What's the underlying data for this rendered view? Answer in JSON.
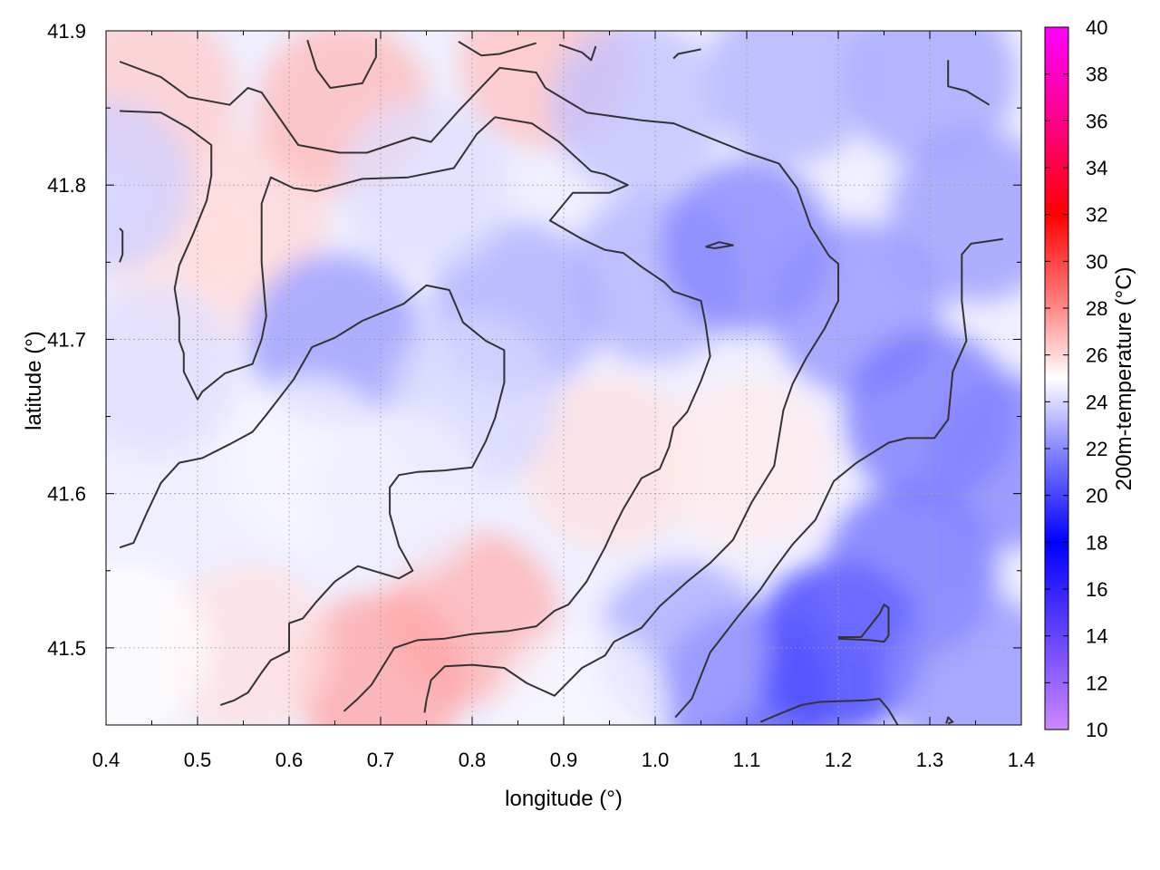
{
  "chart_data": {
    "type": "heatmap",
    "title": "",
    "xlabel": "longitude (°)",
    "ylabel": "latitude (°)",
    "colorbar_label": "200m-temperature (°C)",
    "xlim": [
      0.4,
      1.4
    ],
    "ylim": [
      41.45,
      41.9
    ],
    "x_ticks": [
      0.4,
      0.5,
      0.6,
      0.7,
      0.8,
      0.9,
      1.0,
      1.1,
      1.2,
      1.3,
      1.4
    ],
    "x_tick_labels": [
      "0.4",
      "0.5",
      "0.6",
      "0.7",
      "0.8",
      "0.9",
      "1.0",
      "1.1",
      "1.2",
      "1.3",
      "1.4"
    ],
    "y_ticks": [
      41.5,
      41.6,
      41.7,
      41.8,
      41.9
    ],
    "y_tick_labels": [
      "41.5",
      "41.6",
      "41.7",
      "41.8",
      "41.9"
    ],
    "colorbar_range": [
      10,
      40
    ],
    "colorbar_ticks": [
      10,
      12,
      14,
      16,
      18,
      20,
      22,
      24,
      26,
      28,
      30,
      32,
      34,
      36,
      38,
      40
    ],
    "colorbar_tick_labels": [
      "10",
      "12",
      "14",
      "16",
      "18",
      "20",
      "22",
      "24",
      "26",
      "28",
      "30",
      "32",
      "34",
      "36",
      "38",
      "40"
    ],
    "colormap": [
      {
        "value": 10,
        "color": "#cc88ff"
      },
      {
        "value": 14,
        "color": "#6644ff"
      },
      {
        "value": 18,
        "color": "#0000ff"
      },
      {
        "value": 22,
        "color": "#8888ff"
      },
      {
        "value": 25,
        "color": "#ffffff"
      },
      {
        "value": 28,
        "color": "#ff8888"
      },
      {
        "value": 32,
        "color": "#ff0000"
      },
      {
        "value": 36,
        "color": "#ff0088"
      },
      {
        "value": 40,
        "color": "#ff00ff"
      }
    ],
    "grid": true,
    "field_points": [
      {
        "x": 0.45,
        "y": 41.86,
        "v": 26.3
      },
      {
        "x": 0.55,
        "y": 41.78,
        "v": 26.0
      },
      {
        "x": 0.66,
        "y": 41.85,
        "v": 26.8
      },
      {
        "x": 0.88,
        "y": 41.88,
        "v": 26.6
      },
      {
        "x": 0.5,
        "y": 41.75,
        "v": 25.8
      },
      {
        "x": 0.8,
        "y": 41.52,
        "v": 27.0
      },
      {
        "x": 0.7,
        "y": 41.48,
        "v": 27.3
      },
      {
        "x": 0.55,
        "y": 41.5,
        "v": 25.8
      },
      {
        "x": 0.95,
        "y": 41.62,
        "v": 25.8
      },
      {
        "x": 1.1,
        "y": 41.62,
        "v": 25.5
      },
      {
        "x": 0.5,
        "y": 41.6,
        "v": 24.6
      },
      {
        "x": 0.45,
        "y": 41.68,
        "v": 24.2
      },
      {
        "x": 0.65,
        "y": 41.7,
        "v": 22.4
      },
      {
        "x": 0.85,
        "y": 41.72,
        "v": 22.9
      },
      {
        "x": 0.8,
        "y": 41.66,
        "v": 24.0
      },
      {
        "x": 1.0,
        "y": 41.74,
        "v": 23.0
      },
      {
        "x": 1.1,
        "y": 41.76,
        "v": 21.8
      },
      {
        "x": 1.22,
        "y": 41.72,
        "v": 22.2
      },
      {
        "x": 1.3,
        "y": 41.65,
        "v": 21.4
      },
      {
        "x": 1.35,
        "y": 41.78,
        "v": 22.4
      },
      {
        "x": 1.3,
        "y": 41.87,
        "v": 22.6
      },
      {
        "x": 1.15,
        "y": 41.87,
        "v": 23.0
      },
      {
        "x": 0.98,
        "y": 41.85,
        "v": 23.4
      },
      {
        "x": 1.2,
        "y": 41.5,
        "v": 19.6
      },
      {
        "x": 1.28,
        "y": 41.55,
        "v": 21.2
      },
      {
        "x": 1.1,
        "y": 41.47,
        "v": 20.4
      },
      {
        "x": 1.35,
        "y": 41.48,
        "v": 22.2
      },
      {
        "x": 1.03,
        "y": 41.5,
        "v": 22.8
      },
      {
        "x": 0.62,
        "y": 41.62,
        "v": 24.8
      },
      {
        "x": 0.4,
        "y": 41.8,
        "v": 23.8
      },
      {
        "x": 0.42,
        "y": 41.5,
        "v": 25.0
      },
      {
        "x": 0.92,
        "y": 41.46,
        "v": 24.8
      },
      {
        "x": 1.39,
        "y": 41.62,
        "v": 21.8
      },
      {
        "x": 0.75,
        "y": 41.8,
        "v": 24.2
      },
      {
        "x": 0.72,
        "y": 41.6,
        "v": 24.6
      }
    ],
    "contours": [
      [
        [
          0.415,
          41.88
        ],
        [
          0.46,
          41.87
        ],
        [
          0.49,
          41.857
        ],
        [
          0.535,
          41.852
        ],
        [
          0.555,
          41.863
        ],
        [
          0.57,
          41.86
        ],
        [
          0.61,
          41.826
        ],
        [
          0.655,
          41.821
        ],
        [
          0.685,
          41.821
        ],
        [
          0.735,
          41.831
        ],
        [
          0.755,
          41.828
        ],
        [
          0.785,
          41.848
        ],
        [
          0.83,
          41.876
        ],
        [
          0.87,
          41.873
        ],
        [
          0.88,
          41.863
        ],
        [
          0.925,
          41.847
        ],
        [
          0.985,
          41.842
        ],
        [
          1.02,
          41.84
        ],
        [
          1.1,
          41.821
        ],
        [
          1.135,
          41.814
        ],
        [
          1.155,
          41.798
        ],
        [
          1.17,
          41.773
        ],
        [
          1.19,
          41.754
        ],
        [
          1.2,
          41.749
        ],
        [
          1.2,
          41.725
        ],
        [
          1.185,
          41.707
        ],
        [
          1.165,
          41.688
        ],
        [
          1.15,
          41.671
        ],
        [
          1.14,
          41.654
        ],
        [
          1.13,
          41.618
        ],
        [
          1.105,
          41.594
        ],
        [
          1.085,
          41.57
        ],
        [
          1.06,
          41.555
        ],
        [
          1.035,
          41.543
        ],
        [
          1.005,
          41.527
        ],
        [
          0.985,
          41.513
        ],
        [
          0.955,
          41.504
        ],
        [
          0.945,
          41.495
        ],
        [
          0.92,
          41.487
        ],
        [
          0.89,
          41.469
        ],
        [
          0.86,
          41.477
        ],
        [
          0.835,
          41.487
        ],
        [
          0.8,
          41.489
        ],
        [
          0.77,
          41.488
        ],
        [
          0.755,
          41.479
        ],
        [
          0.75,
          41.466
        ],
        [
          0.748,
          41.458
        ]
      ],
      [
        [
          0.415,
          41.848
        ],
        [
          0.46,
          41.847
        ],
        [
          0.49,
          41.837
        ],
        [
          0.515,
          41.826
        ],
        [
          0.515,
          41.806
        ],
        [
          0.51,
          41.79
        ],
        [
          0.495,
          41.768
        ],
        [
          0.48,
          41.748
        ],
        [
          0.475,
          41.733
        ],
        [
          0.48,
          41.714
        ],
        [
          0.48,
          41.699
        ],
        [
          0.485,
          41.691
        ],
        [
          0.485,
          41.679
        ],
        [
          0.5,
          41.661
        ],
        [
          0.505,
          41.666
        ],
        [
          0.53,
          41.678
        ],
        [
          0.56,
          41.684
        ],
        [
          0.57,
          41.7
        ],
        [
          0.575,
          41.715
        ],
        [
          0.57,
          41.75
        ],
        [
          0.57,
          41.788
        ],
        [
          0.58,
          41.805
        ],
        [
          0.605,
          41.798
        ],
        [
          0.63,
          41.796
        ],
        [
          0.68,
          41.804
        ],
        [
          0.73,
          41.805
        ],
        [
          0.78,
          41.811
        ],
        [
          0.805,
          41.833
        ],
        [
          0.825,
          41.844
        ],
        [
          0.865,
          41.84
        ],
        [
          0.895,
          41.828
        ],
        [
          0.93,
          41.809
        ],
        [
          0.945,
          41.807
        ],
        [
          0.97,
          41.8
        ],
        [
          0.95,
          41.795
        ],
        [
          0.91,
          41.795
        ],
        [
          0.885,
          41.777
        ],
        [
          0.92,
          41.765
        ],
        [
          0.945,
          41.758
        ],
        [
          0.965,
          41.756
        ],
        [
          0.985,
          41.747
        ],
        [
          0.995,
          41.743
        ],
        [
          1.01,
          41.737
        ],
        [
          1.02,
          41.731
        ],
        [
          1.05,
          41.725
        ],
        [
          1.055,
          41.71
        ],
        [
          1.06,
          41.689
        ],
        [
          1.05,
          41.673
        ],
        [
          1.035,
          41.653
        ],
        [
          1.02,
          41.643
        ],
        [
          1.015,
          41.63
        ],
        [
          1.005,
          41.616
        ],
        [
          0.985,
          41.61
        ],
        [
          0.965,
          41.59
        ],
        [
          0.955,
          41.578
        ],
        [
          0.945,
          41.565
        ],
        [
          0.925,
          41.543
        ],
        [
          0.905,
          41.528
        ],
        [
          0.89,
          41.524
        ],
        [
          0.87,
          41.514
        ],
        [
          0.84,
          41.511
        ],
        [
          0.8,
          41.509
        ],
        [
          0.77,
          41.506
        ],
        [
          0.74,
          41.505
        ],
        [
          0.715,
          41.5
        ],
        [
          0.69,
          41.476
        ],
        [
          0.675,
          41.467
        ],
        [
          0.66,
          41.459
        ]
      ],
      [
        [
          0.415,
          41.565
        ],
        [
          0.43,
          41.568
        ],
        [
          0.445,
          41.588
        ],
        [
          0.46,
          41.607
        ],
        [
          0.48,
          41.62
        ],
        [
          0.505,
          41.623
        ],
        [
          0.535,
          41.632
        ],
        [
          0.56,
          41.64
        ],
        [
          0.575,
          41.651
        ],
        [
          0.605,
          41.674
        ],
        [
          0.625,
          41.695
        ],
        [
          0.65,
          41.701
        ],
        [
          0.68,
          41.712
        ],
        [
          0.725,
          41.723
        ],
        [
          0.75,
          41.735
        ],
        [
          0.775,
          41.732
        ],
        [
          0.79,
          41.711
        ],
        [
          0.815,
          41.699
        ],
        [
          0.835,
          41.693
        ],
        [
          0.835,
          41.672
        ],
        [
          0.825,
          41.649
        ],
        [
          0.815,
          41.634
        ],
        [
          0.8,
          41.617
        ],
        [
          0.77,
          41.615
        ],
        [
          0.74,
          41.614
        ],
        [
          0.72,
          41.612
        ],
        [
          0.71,
          41.604
        ],
        [
          0.71,
          41.587
        ],
        [
          0.72,
          41.566
        ],
        [
          0.735,
          41.55
        ],
        [
          0.72,
          41.545
        ],
        [
          0.675,
          41.553
        ],
        [
          0.65,
          41.543
        ],
        [
          0.63,
          41.53
        ],
        [
          0.615,
          41.519
        ],
        [
          0.6,
          41.516
        ],
        [
          0.6,
          41.498
        ],
        [
          0.58,
          41.492
        ],
        [
          0.57,
          41.484
        ],
        [
          0.555,
          41.471
        ],
        [
          0.54,
          41.466
        ],
        [
          0.525,
          41.463
        ]
      ],
      [
        [
          1.022,
          41.455
        ],
        [
          1.04,
          41.467
        ],
        [
          1.06,
          41.497
        ],
        [
          1.09,
          41.52
        ],
        [
          1.115,
          41.538
        ],
        [
          1.13,
          41.551
        ],
        [
          1.15,
          41.567
        ],
        [
          1.175,
          41.583
        ],
        [
          1.195,
          41.608
        ],
        [
          1.22,
          41.62
        ],
        [
          1.255,
          41.633
        ],
        [
          1.275,
          41.636
        ],
        [
          1.305,
          41.636
        ],
        [
          1.32,
          41.648
        ],
        [
          1.325,
          41.679
        ],
        [
          1.34,
          41.699
        ],
        [
          1.335,
          41.725
        ],
        [
          1.335,
          41.755
        ],
        [
          1.345,
          41.762
        ],
        [
          1.38,
          41.765
        ]
      ],
      [
        [
          0.62,
          41.894
        ],
        [
          0.63,
          41.875
        ],
        [
          0.645,
          41.863
        ],
        [
          0.68,
          41.866
        ],
        [
          0.695,
          41.883
        ],
        [
          0.695,
          41.895
        ]
      ],
      [
        [
          0.785,
          41.893
        ],
        [
          0.81,
          41.884
        ],
        [
          0.83,
          41.885
        ],
        [
          0.87,
          41.892
        ]
      ],
      [
        [
          0.895,
          41.891
        ],
        [
          0.92,
          41.886
        ],
        [
          0.93,
          41.881
        ],
        [
          0.935,
          41.89
        ]
      ],
      [
        [
          1.02,
          41.882
        ],
        [
          1.025,
          41.885
        ],
        [
          1.05,
          41.888
        ]
      ],
      [
        [
          1.32,
          41.881
        ],
        [
          1.32,
          41.864
        ],
        [
          1.34,
          41.861
        ],
        [
          1.365,
          41.852
        ]
      ],
      [
        [
          0.415,
          41.772
        ],
        [
          0.418,
          41.77
        ],
        [
          0.418,
          41.755
        ],
        [
          0.415,
          41.75
        ]
      ],
      [
        [
          1.055,
          41.76
        ],
        [
          1.07,
          41.763
        ],
        [
          1.085,
          41.761
        ],
        [
          1.065,
          41.759
        ],
        [
          1.055,
          41.76
        ]
      ],
      [
        [
          1.115,
          41.452
        ],
        [
          1.135,
          41.457
        ],
        [
          1.16,
          41.463
        ],
        [
          1.18,
          41.465
        ],
        [
          1.23,
          41.466
        ],
        [
          1.245,
          41.467
        ],
        [
          1.255,
          41.46
        ],
        [
          1.265,
          41.45
        ]
      ],
      [
        [
          1.2,
          41.506
        ],
        [
          1.235,
          41.505
        ],
        [
          1.25,
          41.504
        ],
        [
          1.255,
          41.508
        ],
        [
          1.255,
          41.526
        ],
        [
          1.25,
          41.528
        ],
        [
          1.245,
          41.522
        ],
        [
          1.225,
          41.507
        ],
        [
          1.2,
          41.507
        ]
      ],
      [
        [
          1.32,
          41.451
        ],
        [
          1.325,
          41.452
        ],
        [
          1.32,
          41.455
        ],
        [
          1.318,
          41.451
        ]
      ]
    ]
  }
}
